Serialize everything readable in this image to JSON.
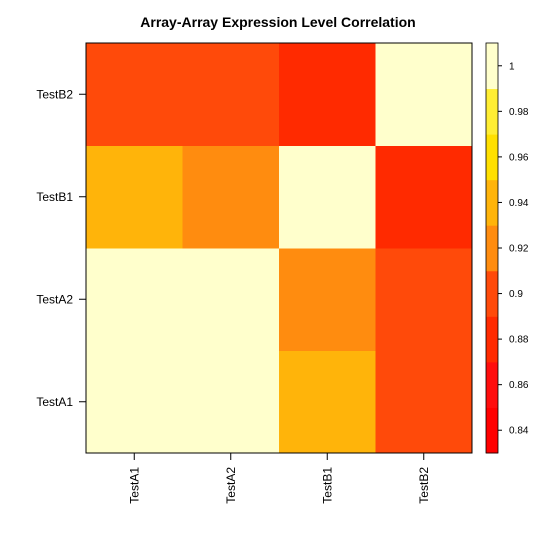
{
  "chart_data": {
    "type": "heatmap",
    "title": "Array-Array Expression Level Correlation",
    "x_categories": [
      "TestA1",
      "TestA2",
      "TestB1",
      "TestB2"
    ],
    "y_categories": [
      "TestA1",
      "TestA2",
      "TestB1",
      "TestB2"
    ],
    "values": [
      [
        1.0,
        1.0,
        0.93,
        0.89
      ],
      [
        1.0,
        1.0,
        0.91,
        0.89
      ],
      [
        0.93,
        0.91,
        1.0,
        0.87
      ],
      [
        0.89,
        0.89,
        0.87,
        1.0
      ]
    ],
    "colorbar": {
      "range": [
        0.83,
        1.01
      ],
      "ticks": [
        0.84,
        0.86,
        0.88,
        0.9,
        0.92,
        0.94,
        0.96,
        0.98,
        1
      ],
      "tick_labels": [
        "0.84",
        "0.86",
        "0.88",
        "0.9",
        "0.92",
        "0.94",
        "0.96",
        "0.98",
        "1"
      ],
      "bins": [
        {
          "from": 0.83,
          "to": 0.85,
          "color": "#ff0000"
        },
        {
          "from": 0.85,
          "to": 0.87,
          "color": "#ff0d0d"
        },
        {
          "from": 0.87,
          "to": 0.89,
          "color": "#ff2a00"
        },
        {
          "from": 0.89,
          "to": 0.91,
          "color": "#ff4a0a"
        },
        {
          "from": 0.91,
          "to": 0.93,
          "color": "#ff8c0f"
        },
        {
          "from": 0.93,
          "to": 0.95,
          "color": "#ffb40a"
        },
        {
          "from": 0.95,
          "to": 0.97,
          "color": "#ffe000"
        },
        {
          "from": 0.97,
          "to": 0.99,
          "color": "#ffee33"
        },
        {
          "from": 0.99,
          "to": 1.01,
          "color": "#ffffcc"
        }
      ]
    }
  }
}
